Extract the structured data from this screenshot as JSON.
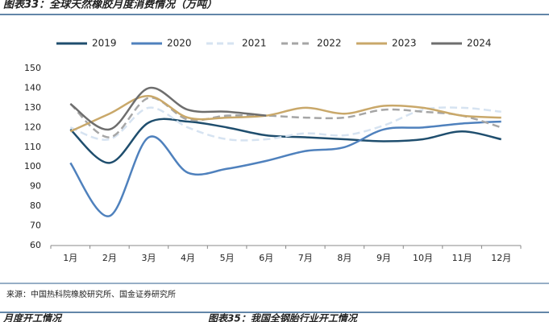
{
  "header": {
    "title": "图表33：全球天然橡胶月度消费情况（万吨）"
  },
  "chart_data": {
    "type": "line",
    "categories": [
      "1月",
      "2月",
      "3月",
      "4月",
      "5月",
      "6月",
      "7月",
      "8月",
      "9月",
      "10月",
      "11月",
      "12月"
    ],
    "ylim": [
      60,
      150
    ],
    "yticks": [
      60,
      70,
      80,
      90,
      100,
      110,
      120,
      130,
      140,
      150
    ],
    "grid": false,
    "legend": "top",
    "series": [
      {
        "name": "2019",
        "color": "#1f4e6e",
        "dashed": false,
        "values": [
          119,
          102,
          122.5,
          123,
          120,
          116,
          115,
          114,
          113,
          114,
          118,
          114
        ]
      },
      {
        "name": "2020",
        "color": "#4f81bd",
        "dashed": false,
        "values": [
          102,
          75,
          115,
          97,
          99,
          103,
          108,
          110,
          119,
          120,
          122,
          123
        ]
      },
      {
        "name": "2021",
        "color": "#d6e3f1",
        "dashed": true,
        "values": [
          120,
          114,
          130,
          120,
          114,
          114,
          117,
          116,
          121,
          129,
          130,
          128
        ]
      },
      {
        "name": "2022",
        "color": "#a6a6a6",
        "dashed": true,
        "values": [
          132,
          115,
          135,
          124,
          126,
          126,
          125,
          125,
          129,
          128,
          126,
          120
        ]
      },
      {
        "name": "2023",
        "color": "#c9a86a",
        "dashed": false,
        "values": [
          118,
          127,
          136,
          125,
          125,
          126,
          130,
          127,
          131,
          130,
          126,
          125
        ]
      },
      {
        "name": "2024",
        "color": "#6e6e6e",
        "dashed": false,
        "values": [
          132,
          119,
          140,
          129,
          128,
          126,
          null,
          null,
          null,
          null,
          null,
          null
        ]
      }
    ]
  },
  "source": "来源：中国热科院橡胶研究所、国金证券研究所",
  "footer": {
    "left": "月度开工情况",
    "right": "图表35：我国全钢胎行业开工情况"
  }
}
